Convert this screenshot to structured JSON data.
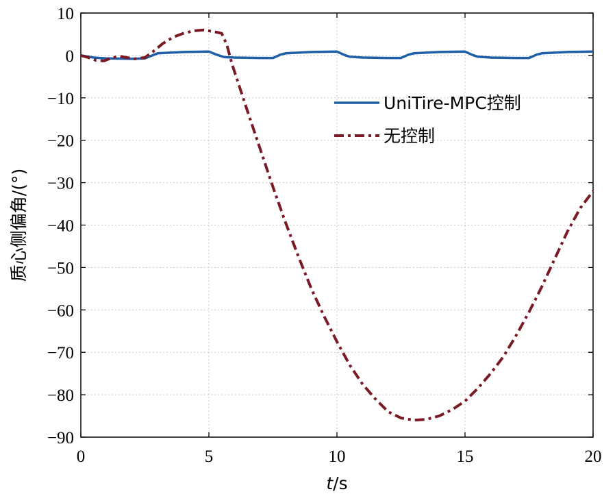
{
  "chart_data": {
    "type": "line",
    "xlabel": "t/s",
    "ylabel": "质心侧偏角/(°)",
    "xlim": [
      0,
      20
    ],
    "ylim": [
      -90,
      10
    ],
    "xticks": [
      0,
      5,
      10,
      15,
      20
    ],
    "yticks": [
      10,
      0,
      -10,
      -20,
      -30,
      -40,
      -50,
      -60,
      -70,
      -80,
      -90
    ],
    "xtick_labels": [
      "0",
      "5",
      "10",
      "15",
      "20"
    ],
    "ytick_labels": [
      "10",
      "0",
      "−10",
      "−20",
      "−30",
      "−40",
      "−50",
      "−60",
      "−70",
      "−80",
      "−90"
    ],
    "grid": true,
    "legend_position": "top-right",
    "series": [
      {
        "name": "UniTire-MPC控制",
        "color": "#1f5fa8",
        "line_style": "solid",
        "x": [
          0,
          0.5,
          1,
          2,
          2.5,
          3,
          4,
          5,
          5.3,
          5.6,
          6,
          7,
          7.5,
          7.8,
          8,
          9,
          10,
          10.3,
          10.5,
          11,
          12,
          12.5,
          12.8,
          13,
          14,
          15,
          15.3,
          15.5,
          16,
          17,
          17.5,
          17.8,
          18,
          19,
          20
        ],
        "y": [
          0,
          -0.5,
          -0.7,
          -0.8,
          -0.7,
          0.5,
          0.8,
          0.9,
          0.2,
          -0.4,
          -0.5,
          -0.6,
          -0.6,
          0.2,
          0.5,
          0.8,
          0.9,
          0.1,
          -0.3,
          -0.5,
          -0.6,
          -0.6,
          0.2,
          0.5,
          0.8,
          0.9,
          0.1,
          -0.3,
          -0.5,
          -0.6,
          -0.6,
          0.2,
          0.5,
          0.8,
          0.9
        ]
      },
      {
        "name": "无控制",
        "color": "#7a1a24",
        "line_style": "dashdot",
        "x": [
          0,
          0.3,
          0.6,
          0.9,
          1.2,
          1.5,
          1.8,
          2.1,
          2.5,
          2.8,
          3.2,
          3.6,
          4,
          4.4,
          4.8,
          5.2,
          5.5,
          5.7,
          5.9,
          6.2,
          6.5,
          7,
          7.5,
          8,
          8.5,
          9,
          9.5,
          10,
          10.5,
          11,
          11.5,
          12,
          12.5,
          13,
          13.5,
          14,
          14.5,
          15,
          15.5,
          16,
          16.5,
          17,
          17.5,
          18,
          18.5,
          19,
          19.5,
          20
        ],
        "y": [
          0,
          -0.5,
          -1.2,
          -1.3,
          -0.6,
          -0.2,
          -0.5,
          -0.8,
          -0.5,
          0.8,
          2.8,
          4.3,
          5.2,
          5.8,
          6,
          5.6,
          5.2,
          2.5,
          -2.0,
          -7.5,
          -13,
          -22,
          -31,
          -39.5,
          -47.5,
          -55,
          -61.5,
          -67.5,
          -73,
          -77.5,
          -81,
          -84,
          -85.5,
          -86,
          -85.8,
          -85,
          -83.5,
          -81.5,
          -78.5,
          -75,
          -71,
          -66,
          -60.5,
          -54.5,
          -48,
          -41.5,
          -36,
          -32
        ]
      }
    ]
  }
}
